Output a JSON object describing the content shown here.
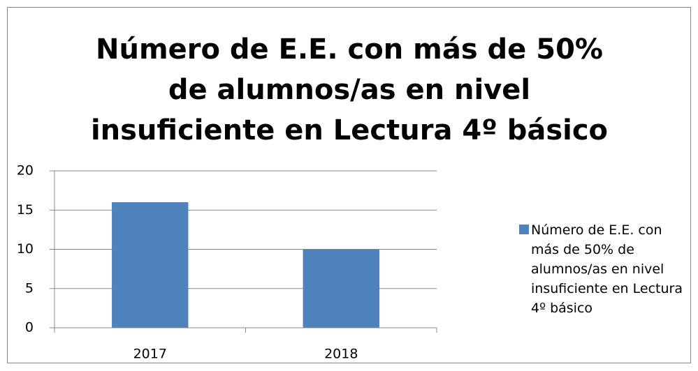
{
  "chart_data": {
    "type": "bar",
    "title": "Número de E.E. con más de 50% de alumnos/as en nivel insuficiente en Lectura 4º básico",
    "categories": [
      "2017",
      "2018"
    ],
    "series": [
      {
        "name": "Número de E.E. con más de 50% de alumnos/as en nivel insuficiente en Lectura 4º básico",
        "color": "#4f81bd",
        "values": [
          16,
          10
        ]
      }
    ],
    "ylim": [
      0,
      20
    ],
    "yticks": [
      0,
      5,
      10,
      15,
      20
    ],
    "grid": true,
    "legend": "right"
  }
}
